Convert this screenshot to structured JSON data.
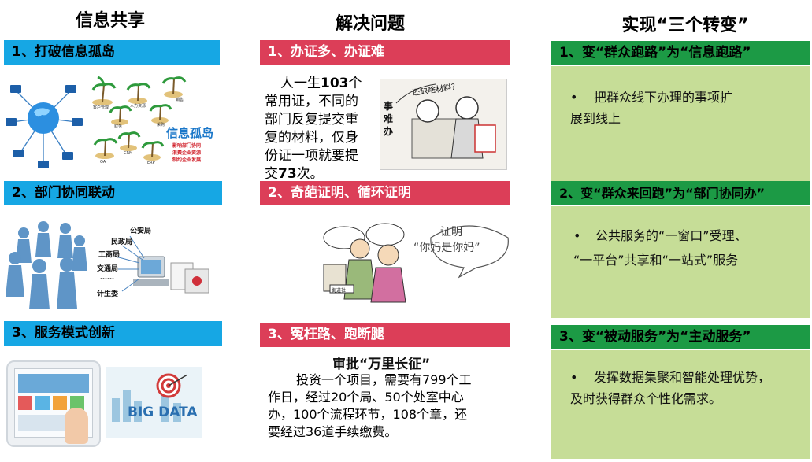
{
  "columns": {
    "left_title": "信息共享",
    "middle_title": "解决问题",
    "right_title": "实现“三个转变”"
  },
  "left": {
    "items": [
      {
        "label": "1、打破信息孤岛"
      },
      {
        "label": "2、部门协同联动"
      },
      {
        "label": "3、服务模式创新"
      }
    ],
    "island": {
      "title": "信息孤岛",
      "bullets": [
        "影响部门协同",
        "浪费企业资源",
        "制约企业发展"
      ],
      "island_labels": [
        "客户管理",
        "人力资源",
        "财务",
        "采购",
        "销售",
        "CRM",
        "OA",
        "ERP"
      ]
    },
    "depts": [
      "公安局",
      "民政局",
      "工商局",
      "交通局",
      "……",
      "计生委"
    ],
    "bigdata": "BIG DATA"
  },
  "middle": {
    "items": [
      {
        "label": "1、办证多、办证难"
      },
      {
        "label": "2、奇葩证明、循环证明"
      },
      {
        "label": "3、冤枉路、跑断腿"
      }
    ],
    "p1": {
      "lines": [
        "人一生",
        "103",
        "个",
        "常用证，不同的",
        "部门反复提交重",
        "复的材料，仅身",
        "份证一项就要提",
        "交",
        "73",
        "次。"
      ]
    },
    "cartoon1": {
      "side_text": "事难办",
      "top_text": "还缺啥材料？"
    },
    "cartoon2": {
      "bubble_line1": "证明",
      "bubble_line2": "“你妈是你妈”",
      "sign": "街道社"
    },
    "p3": {
      "title": "审批“万里长征”",
      "body": [
        "投资一个项目，需要有799个工",
        "作日，经过20个局、50个处室中心",
        "办，100个流程环节，108个章，还",
        "要经过36道手续缴费。"
      ]
    }
  },
  "right": {
    "items": [
      {
        "label": "1、变“群众跑路”为“信息跑路”",
        "bullet": "•",
        "lines": [
          "把群众线下办理的事项扩",
          "展到线上"
        ]
      },
      {
        "label": "2、变“群众来回跑”为“部门协同办”",
        "bullet": "•",
        "lines": [
          "公共服务的“一窗口”受理、",
          "“一平台”共享和“一站式”服务"
        ]
      },
      {
        "label": "3、变“被动服务”为“主动服务”",
        "bullet": "•",
        "lines": [
          "发挥数据集聚和智能处理优势，",
          "及时获得群众个性化需求。"
        ]
      }
    ]
  },
  "colors": {
    "blue_bar": "#16a7e4",
    "red_bar": "#dc3e58",
    "green_bar": "#1c9a45",
    "green_box": "#c6dd97"
  }
}
